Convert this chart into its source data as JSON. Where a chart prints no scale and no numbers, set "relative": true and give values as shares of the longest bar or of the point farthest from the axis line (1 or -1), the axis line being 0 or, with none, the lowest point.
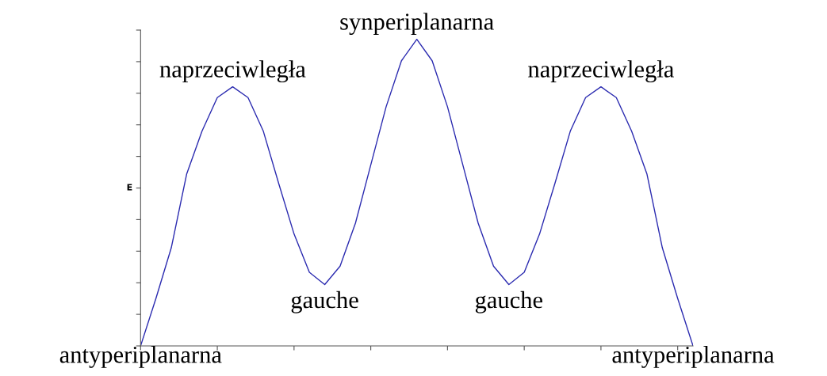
{
  "chart_data": {
    "type": "line",
    "relative": true,
    "ylabel": "E",
    "categories": [
      null,
      null,
      null,
      null,
      null,
      null,
      null,
      null,
      null,
      null,
      null,
      null,
      null,
      null,
      null,
      null,
      null,
      null,
      null,
      null,
      null,
      null,
      null,
      null,
      null,
      null,
      null,
      null,
      null,
      null,
      null,
      null,
      null,
      null,
      null,
      null,
      null
    ],
    "series": [
      {
        "color": "#2b2bb0",
        "values": [
          0,
          0.155,
          0.32,
          0.56,
          0.7,
          0.81,
          0.845,
          0.81,
          0.7,
          0.53,
          0.365,
          0.24,
          0.2,
          0.26,
          0.4,
          0.59,
          0.78,
          0.93,
          1,
          0.93,
          0.78,
          0.59,
          0.4,
          0.26,
          0.2,
          0.24,
          0.365,
          0.53,
          0.7,
          0.81,
          0.845,
          0.81,
          0.7,
          0.56,
          0.32,
          0.155,
          0
        ]
      }
    ],
    "annotations": [
      "antyperiplanarna",
      "naprzeciwległa",
      "gauche",
      "synperiplanarna",
      "gauche",
      "naprzeciwległa",
      "antyperiplanarna"
    ],
    "marker": "none",
    "line_style": "solid",
    "grid": false,
    "legend": false
  }
}
